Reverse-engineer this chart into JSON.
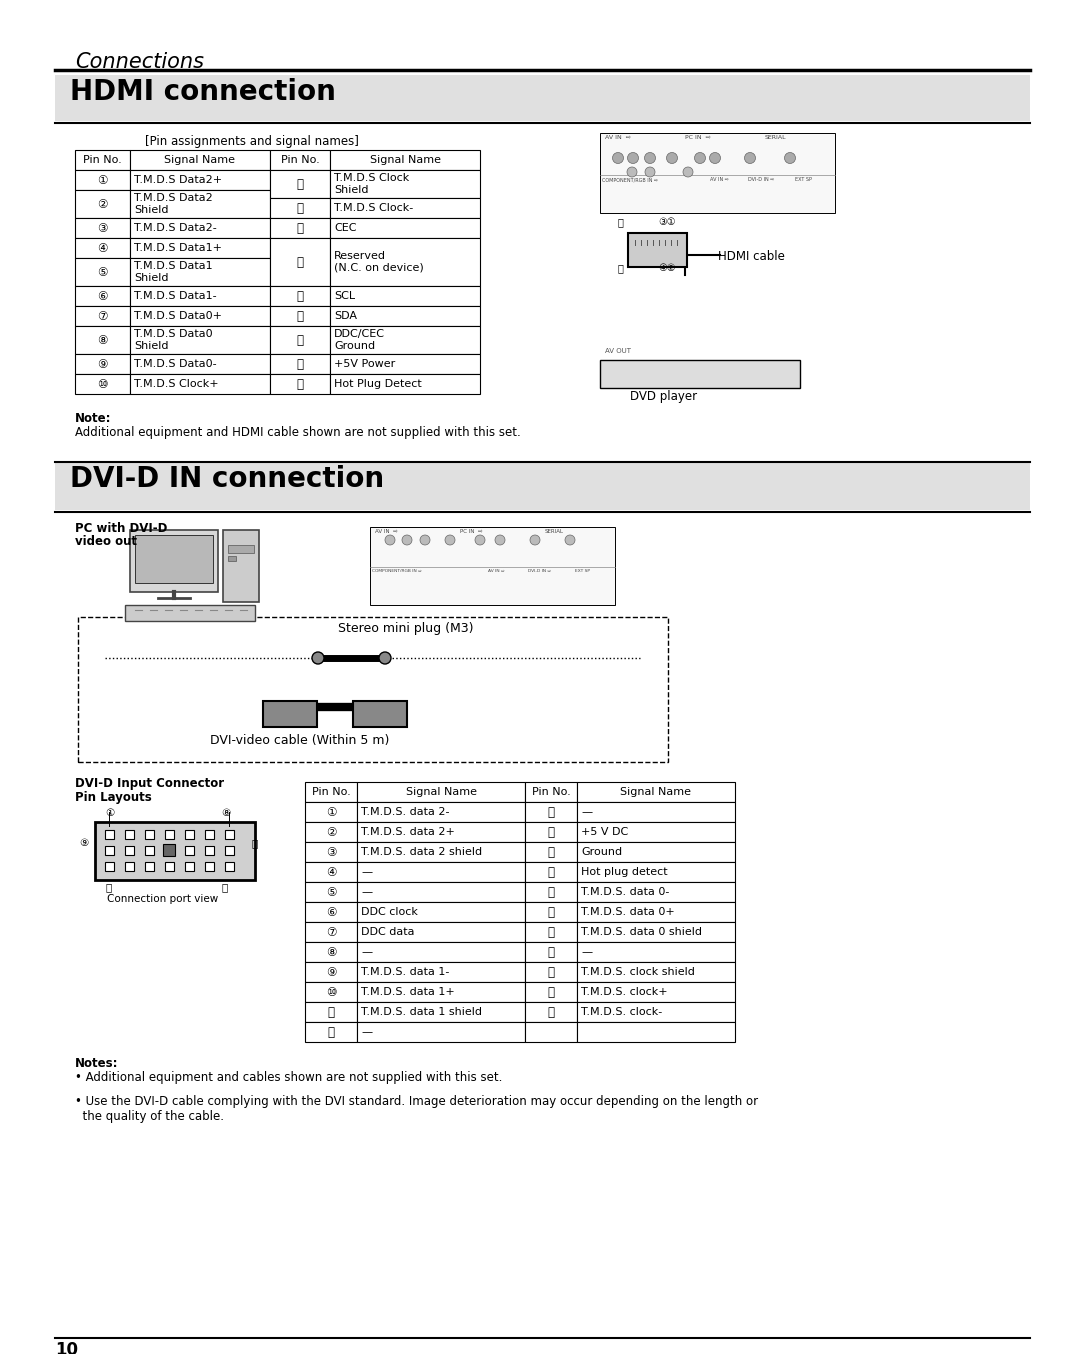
{
  "page_title": "Connections",
  "section1_title": "HDMI connection",
  "section2_title": "DVI-D IN connection",
  "hdmi_subtitle": "[Pin assignments and signal names]",
  "hdmi_table_headers": [
    "Pin No.",
    "Signal Name",
    "Pin No.",
    "Signal Name"
  ],
  "hdmi_table_left": [
    [
      "①",
      "T.M.D.S Data2+"
    ],
    [
      "②",
      "T.M.D.S Data2\nShield"
    ],
    [
      "③",
      "T.M.D.S Data2-"
    ],
    [
      "④",
      "T.M.D.S Data1+"
    ],
    [
      "⑤",
      "T.M.D.S Data1\nShield"
    ],
    [
      "⑥",
      "T.M.D.S Data1-"
    ],
    [
      "⑦",
      "T.M.D.S Data0+"
    ],
    [
      "⑧",
      "T.M.D.S Data0\nShield"
    ],
    [
      "⑨",
      "T.M.D.S Data0-"
    ],
    [
      "⑩",
      "T.M.D.S Clock+"
    ]
  ],
  "hdmi_table_right": [
    [
      "⑪",
      "T.M.D.S Clock\nShield"
    ],
    [
      "⑫",
      "T.M.D.S Clock-"
    ],
    [
      "⑬",
      "CEC"
    ],
    [
      "⑭",
      "Reserved\n(N.C. on device)"
    ],
    [
      "⑮",
      "SCL"
    ],
    [
      "⑯",
      "SDA"
    ],
    [
      "⑰",
      "DDC/CEC\nGround"
    ],
    [
      "⑱",
      "+5V Power"
    ],
    [
      "⑲",
      "Hot Plug Detect"
    ]
  ],
  "hdmi_note_title": "Note:",
  "hdmi_note_body": "Additional equipment and HDMI cable shown are not supplied with this set.",
  "hdmi_cable_label": "HDMI cable",
  "dvd_player_label": "DVD player",
  "dvi_label1": "PC with DVI-D",
  "dvi_label2": "video out",
  "dvi_cable_label": "Stereo mini plug (M3)",
  "dvi_video_cable": "DVI-video cable (Within 5 m)",
  "dvi_connector_label1": "DVI-D Input Connector",
  "dvi_connector_label2": "Pin Layouts",
  "connection_port_view": "Connection port view",
  "dvi_table_headers": [
    "Pin No.",
    "Signal Name",
    "Pin No.",
    "Signal Name"
  ],
  "dvi_table_left": [
    [
      "①",
      "T.M.D.S. data 2-"
    ],
    [
      "②",
      "T.M.D.S. data 2+"
    ],
    [
      "③",
      "T.M.D.S. data 2 shield"
    ],
    [
      "④",
      "—"
    ],
    [
      "⑤",
      "—"
    ],
    [
      "⑥",
      "DDC clock"
    ],
    [
      "⑦",
      "DDC data"
    ],
    [
      "⑧",
      "—"
    ],
    [
      "⑨",
      "T.M.D.S. data 1-"
    ],
    [
      "⑩",
      "T.M.D.S. data 1+"
    ],
    [
      "⑪",
      "T.M.D.S. data 1 shield"
    ],
    [
      "⑫",
      "—"
    ]
  ],
  "dvi_table_right": [
    [
      "⑬",
      "—"
    ],
    [
      "⑭",
      "+5 V DC"
    ],
    [
      "⑮",
      "Ground"
    ],
    [
      "⑯",
      "Hot plug detect"
    ],
    [
      "⑰",
      "T.M.D.S. data 0-"
    ],
    [
      "⑱",
      "T.M.D.S. data 0+"
    ],
    [
      "⑲",
      "T.M.D.S. data 0 shield"
    ],
    [
      "⑳",
      "—"
    ],
    [
      "㉑",
      "T.M.D.S. clock shield"
    ],
    [
      "㉒",
      "T.M.D.S. clock+"
    ],
    [
      "㉓",
      "T.M.D.S. clock-"
    ],
    [
      "",
      ""
    ]
  ],
  "notes_title": "Notes:",
  "notes_lines": [
    "• Additional equipment and cables shown are not supplied with this set.",
    "• Use the DVI-D cable complying with the DVI standard. Image deterioration may occur depending on the length or\n  the quality of the cable."
  ],
  "page_number": "10",
  "bg_color": "#ffffff",
  "text_color": "#000000"
}
